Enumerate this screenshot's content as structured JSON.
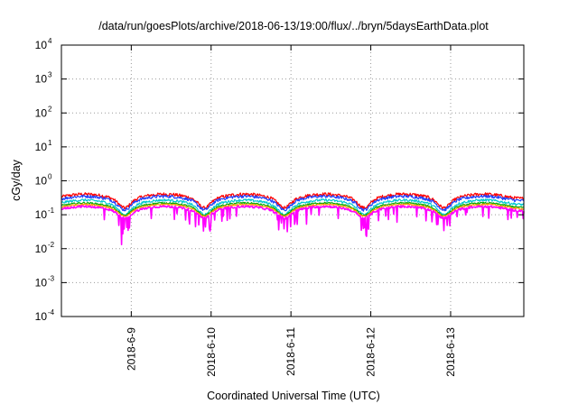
{
  "chart_data": {
    "type": "line",
    "title": "/data/run/goesPlots/archive/2018-06-13/19:00/flux/../bryn/5daysEarthData.plot",
    "xlabel": "Coordinated Universal Time (UTC)",
    "ylabel": "cGy/day",
    "y_scale": "log",
    "ylim": [
      0.0001,
      10000
    ],
    "y_ticks": [
      {
        "base": "10",
        "exp": "-4"
      },
      {
        "base": "10",
        "exp": "-3"
      },
      {
        "base": "10",
        "exp": "-2"
      },
      {
        "base": "10",
        "exp": "-1"
      },
      {
        "base": "10",
        "exp": "0"
      },
      {
        "base": "10",
        "exp": "1"
      },
      {
        "base": "10",
        "exp": "2"
      },
      {
        "base": "10",
        "exp": "3"
      },
      {
        "base": "10",
        "exp": "4"
      }
    ],
    "xlim": [
      "2018-06-08T03:00",
      "2018-06-13T22:00"
    ],
    "x_ticks": [
      "2018-6-9",
      "2018-6-10",
      "2018-6-11",
      "2018-6-12",
      "2018-6-13"
    ],
    "grid": true,
    "series": [
      {
        "color": "#ff0000",
        "level": 0.3,
        "amp": 0.14,
        "noise": 0.11,
        "dip": 0.0
      },
      {
        "color": "#1f3fff",
        "level": 0.26,
        "amp": 0.12,
        "noise": 0.1,
        "dip": 0.0
      },
      {
        "color": "#00c8d0",
        "level": 0.2,
        "amp": 0.1,
        "noise": 0.08,
        "dip": 0.0
      },
      {
        "color": "#00aa00",
        "level": 0.165,
        "amp": 0.07,
        "noise": 0.05,
        "dip": 0.0
      },
      {
        "color": "#ff9900",
        "level": 0.15,
        "amp": 0.06,
        "noise": 0.05,
        "dip": 0.0
      },
      {
        "color": "#ff00ff",
        "level": 0.13,
        "amp": 0.05,
        "noise": 0.07,
        "dip": 1.0
      }
    ],
    "minima_days": [
      "2018-06-08T22:00",
      "2018-06-09T22:00",
      "2018-06-10T22:00",
      "2018-06-11T22:00",
      "2018-06-12T22:00"
    ]
  }
}
